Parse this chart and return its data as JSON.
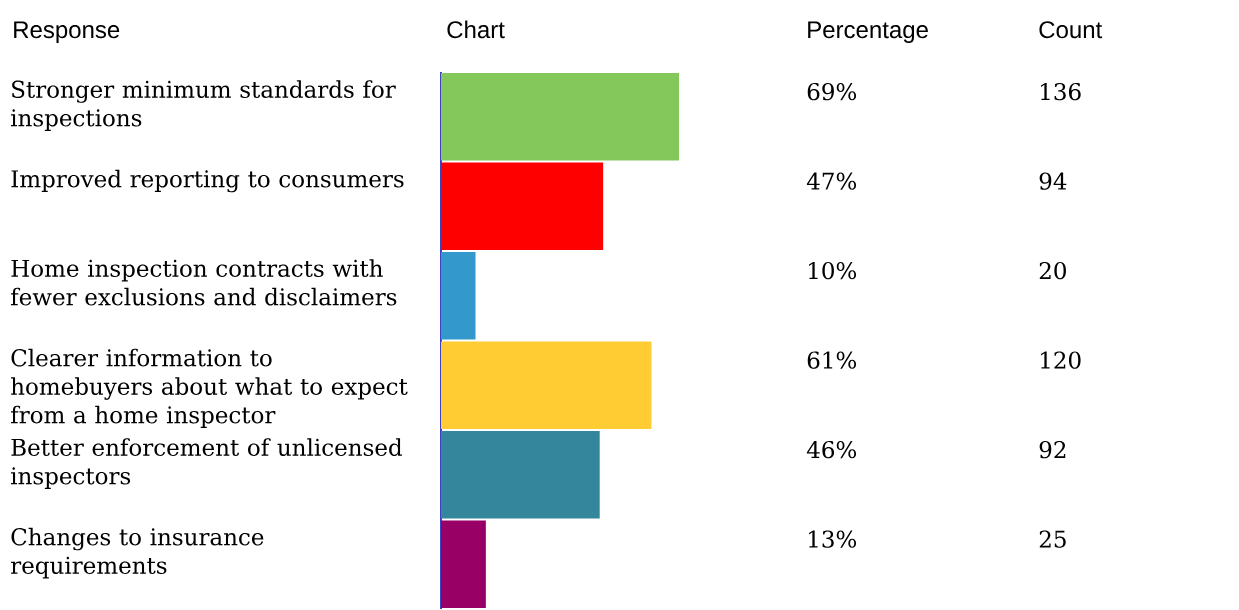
{
  "chart_data": {
    "type": "bar",
    "orientation": "horizontal",
    "tick_labels": "y",
    "categories": [
      "Stronger minimum standards for inspections",
      "Improved reporting to consumers",
      "Home inspection contracts with fewer exclusions and disclaimers",
      "Clearer information to homebuyers about what to expect from a home inspector",
      "Better enforcement of unlicensed inspectors",
      "Changes to insurance requirements"
    ],
    "values": [
      69,
      47,
      10,
      61,
      46,
      13
    ],
    "colors": [
      "#84c85c",
      "#ff0000",
      "#3399cc",
      "#ffcc33",
      "#33869c",
      "#990066"
    ],
    "value_labels": [
      "69%",
      "47%",
      "10%",
      "61%",
      "46%",
      "13%"
    ],
    "annotations": [
      "Response",
      "Chart",
      "Percentage",
      "Count",
      "136",
      "94",
      "20",
      "120",
      "92",
      "25"
    ]
  }
}
